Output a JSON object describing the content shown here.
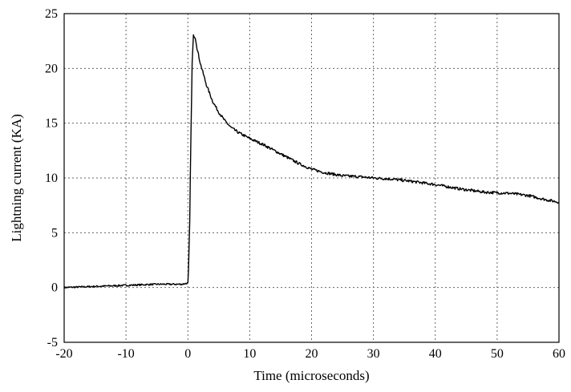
{
  "chart_data": {
    "type": "line",
    "title": "",
    "xlabel": "Time (microseconds)",
    "ylabel": "Lightning current (KA)",
    "xlim": [
      -20,
      60
    ],
    "ylim": [
      -5,
      25
    ],
    "xticks": [
      -20,
      -10,
      0,
      10,
      20,
      30,
      40,
      50,
      60
    ],
    "yticks": [
      -5,
      0,
      5,
      10,
      15,
      20,
      25
    ],
    "grid": true,
    "legend": "none",
    "series": [
      {
        "color": "#000000",
        "points": [
          [
            -20,
            0.0
          ],
          [
            -15,
            0.1
          ],
          [
            -10,
            0.2
          ],
          [
            -5,
            0.3
          ],
          [
            -1,
            0.3
          ],
          [
            0,
            0.4
          ],
          [
            0.1,
            1.5
          ],
          [
            0.3,
            6.0
          ],
          [
            0.5,
            14.0
          ],
          [
            0.7,
            20.5
          ],
          [
            0.9,
            23.0
          ],
          [
            1.2,
            22.8
          ],
          [
            1.5,
            21.8
          ],
          [
            2,
            20.5
          ],
          [
            3,
            18.5
          ],
          [
            4,
            17.0
          ],
          [
            5,
            16.0
          ],
          [
            6,
            15.2
          ],
          [
            7,
            14.6
          ],
          [
            8,
            14.2
          ],
          [
            9,
            13.9
          ],
          [
            10,
            13.6
          ],
          [
            12,
            13.1
          ],
          [
            14,
            12.5
          ],
          [
            16,
            11.9
          ],
          [
            18,
            11.3
          ],
          [
            20,
            10.8
          ],
          [
            22,
            10.5
          ],
          [
            25,
            10.2
          ],
          [
            28,
            10.1
          ],
          [
            30,
            10.0
          ],
          [
            33,
            9.9
          ],
          [
            36,
            9.7
          ],
          [
            40,
            9.4
          ],
          [
            44,
            9.0
          ],
          [
            48,
            8.7
          ],
          [
            52,
            8.6
          ],
          [
            55,
            8.4
          ],
          [
            58,
            8.0
          ],
          [
            60,
            7.8
          ]
        ]
      }
    ]
  }
}
